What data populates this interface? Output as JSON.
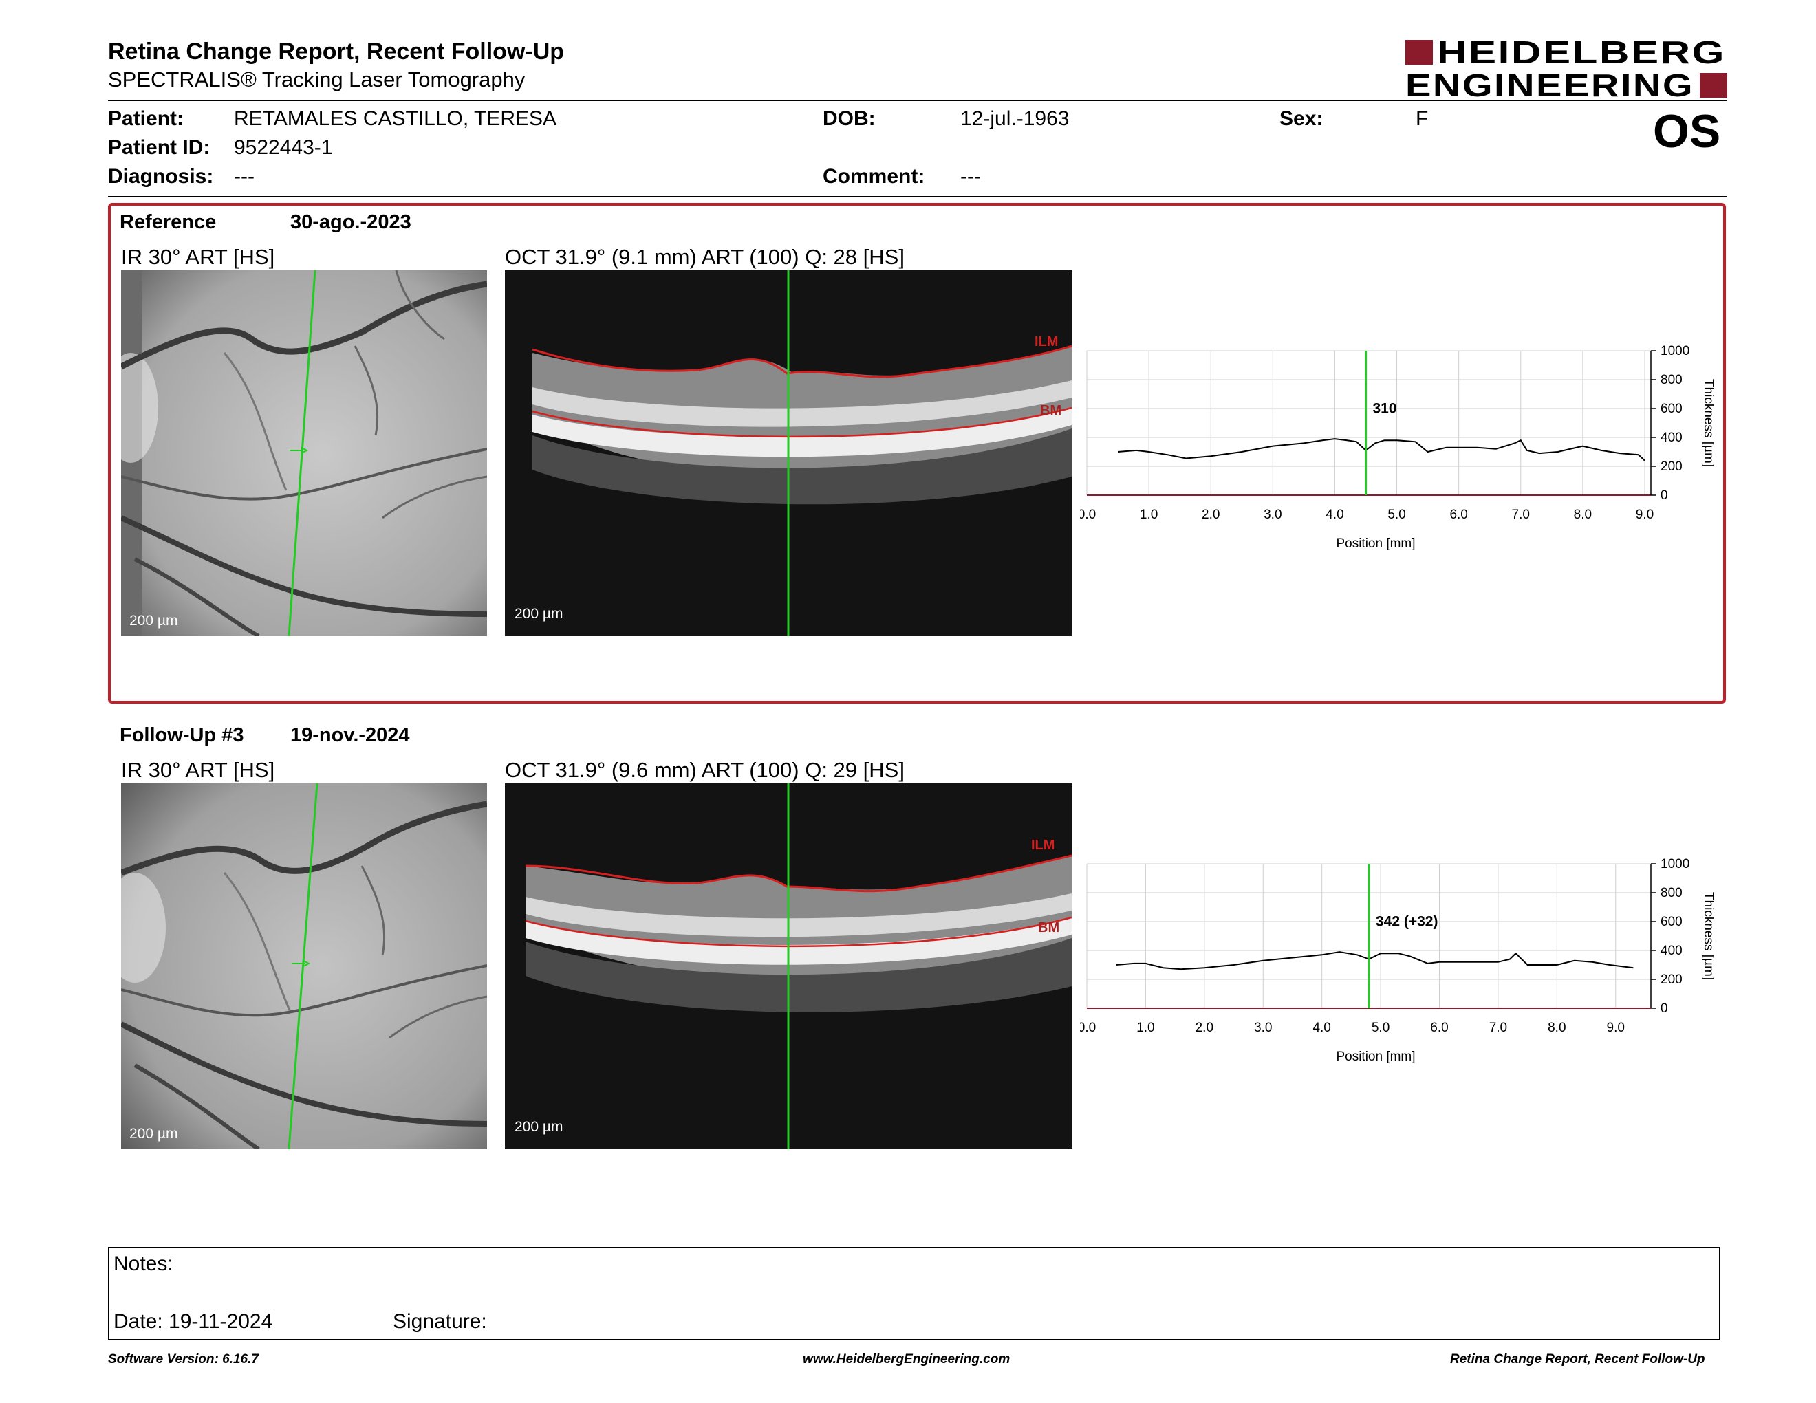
{
  "header": {
    "title": "Retina Change Report, Recent Follow-Up",
    "subtitle": "SPECTRALIS® Tracking Laser Tomography",
    "logo_line1": "HEIDELBERG",
    "logo_line2": "ENGINEERING",
    "brand_color": "#8b1a2b"
  },
  "patient": {
    "patient_label": "Patient:",
    "patient_value": "RETAMALES CASTILLO, TERESA",
    "id_label": "Patient ID:",
    "id_value": "9522443-1",
    "diagnosis_label": "Diagnosis:",
    "diagnosis_value": "---",
    "dob_label": "DOB:",
    "dob_value": "12-jul.-1963",
    "comment_label": "Comment:",
    "comment_value": "---",
    "sex_label": "Sex:",
    "sex_value": "F",
    "eye": "OS"
  },
  "reference": {
    "label": "Reference",
    "date": "30-ago.-2023",
    "ir_label": "IR 30° ART [HS]",
    "oct_label": "OCT 31.9° (9.1 mm) ART (100) Q: 28 [HS]",
    "ir_scale": "200 µm",
    "oct_scale": "200 µm",
    "ilm": "ILM",
    "bm": "BM",
    "highlight_color": "#c0202a"
  },
  "followup": {
    "label": "Follow-Up #3",
    "date": "19-nov.-2024",
    "ir_label": "IR 30° ART [HS]",
    "oct_label": "OCT 31.9° (9.6 mm) ART (100) Q: 29 [HS]",
    "ir_scale": "200 µm",
    "oct_scale": "200 µm",
    "ilm": "ILM",
    "bm": "BM"
  },
  "chart_data": [
    {
      "type": "line",
      "xlabel": "Position [mm]",
      "ylabel": "Thickness [µm]",
      "xlim": [
        0,
        9.1
      ],
      "ylim": [
        0,
        1000
      ],
      "xticks": [
        "0.0",
        "1.0",
        "2.0",
        "3.0",
        "4.0",
        "5.0",
        "6.0",
        "7.0",
        "8.0",
        "9.0"
      ],
      "yticks": [
        "0",
        "200",
        "400",
        "600",
        "800",
        "1000"
      ],
      "marker_x": 4.5,
      "marker_label": "310",
      "grid": true,
      "series": [
        {
          "x": [
            0.5,
            0.8,
            1.0,
            1.3,
            1.6,
            2.0,
            2.5,
            3.0,
            3.5,
            3.8,
            4.0,
            4.2,
            4.35,
            4.5,
            4.65,
            4.8,
            5.0,
            5.3,
            5.5,
            5.8,
            6.0,
            6.3,
            6.6,
            6.9,
            7.0,
            7.1,
            7.3,
            7.6,
            8.0,
            8.3,
            8.6,
            8.9,
            9.0
          ],
          "y": [
            300,
            310,
            300,
            280,
            255,
            270,
            300,
            340,
            360,
            380,
            390,
            380,
            370,
            310,
            360,
            380,
            380,
            370,
            300,
            330,
            330,
            330,
            320,
            360,
            380,
            310,
            290,
            300,
            340,
            310,
            290,
            280,
            240
          ]
        }
      ]
    },
    {
      "type": "line",
      "xlabel": "Position [mm]",
      "ylabel": "Thickness [µm]",
      "xlim": [
        0,
        9.6
      ],
      "ylim": [
        0,
        1000
      ],
      "xticks": [
        "0.0",
        "1.0",
        "2.0",
        "3.0",
        "4.0",
        "5.0",
        "6.0",
        "7.0",
        "8.0",
        "9.0"
      ],
      "yticks": [
        "0",
        "200",
        "400",
        "600",
        "800",
        "1000"
      ],
      "marker_x": 4.8,
      "marker_label": "342 (+32)",
      "grid": true,
      "series": [
        {
          "x": [
            0.5,
            0.8,
            1.0,
            1.3,
            1.6,
            2.0,
            2.5,
            3.0,
            3.5,
            4.0,
            4.3,
            4.6,
            4.8,
            5.0,
            5.3,
            5.5,
            5.8,
            6.0,
            6.5,
            7.0,
            7.2,
            7.3,
            7.5,
            7.8,
            8.0,
            8.3,
            8.6,
            8.9,
            9.3
          ],
          "y": [
            300,
            310,
            310,
            280,
            270,
            280,
            300,
            330,
            350,
            370,
            390,
            370,
            340,
            380,
            380,
            360,
            310,
            320,
            320,
            320,
            340,
            380,
            300,
            300,
            300,
            330,
            320,
            300,
            280
          ]
        }
      ]
    }
  ],
  "notes": {
    "notes_label": "Notes:",
    "date_label": "Date: 19-11-2024",
    "signature_label": "Signature:"
  },
  "footer": {
    "software": "Software Version: 6.16.7",
    "website": "www.HeidelbergEngineering.com",
    "report": "Retina Change Report, Recent Follow-Up"
  }
}
